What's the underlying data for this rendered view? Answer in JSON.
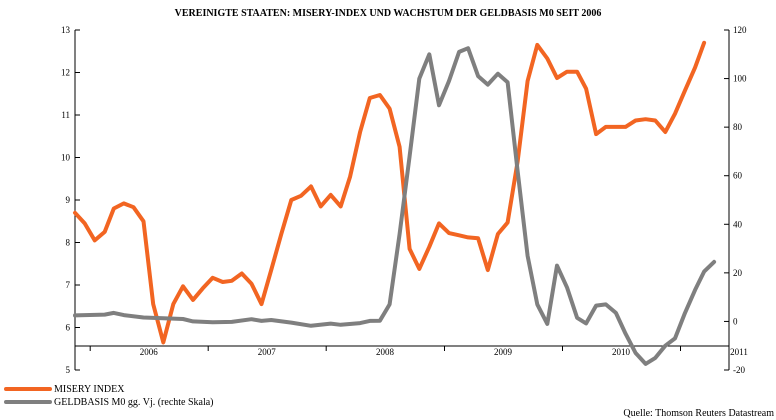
{
  "chart_data": {
    "type": "line",
    "title": "VEREINIGTE STAATEN: MISERY-INDEX UND WACHSTUM DER GELDBASIS M0 SEIT 2006",
    "source": "Quelle: Thomson Reuters Datastream",
    "x_axis": {
      "range": [
        "2005-11-15",
        "2011-05-31"
      ],
      "tick_labels": [
        "2006",
        "2007",
        "2008",
        "2009",
        "2010",
        "2011"
      ]
    },
    "y_left": {
      "range": [
        5,
        13
      ],
      "tick_labels": [
        "5",
        "6",
        "7",
        "8",
        "9",
        "10",
        "11",
        "12",
        "13"
      ]
    },
    "y_right": {
      "range": [
        -20,
        120
      ],
      "tick_labels": [
        "-20",
        "0",
        "20",
        "40",
        "60",
        "80",
        "100",
        "120"
      ]
    },
    "grid": false,
    "legend_position": "bottom-left",
    "series": [
      {
        "name": "MISERY INDEX",
        "axis": "left",
        "color": "#f26522",
        "points": [
          [
            "2005-11",
            8.7
          ],
          [
            "2005-12",
            8.45
          ],
          [
            "2006-01",
            8.05
          ],
          [
            "2006-02",
            8.25
          ],
          [
            "2006-03",
            8.8
          ],
          [
            "2006-04",
            8.92
          ],
          [
            "2006-05",
            8.83
          ],
          [
            "2006-06",
            8.5
          ],
          [
            "2006-07",
            6.55
          ],
          [
            "2006-08",
            5.65
          ],
          [
            "2006-09",
            6.55
          ],
          [
            "2006-10",
            6.97
          ],
          [
            "2006-11",
            6.65
          ],
          [
            "2006-12",
            6.92
          ],
          [
            "2007-01",
            7.17
          ],
          [
            "2007-02",
            7.07
          ],
          [
            "2007-03",
            7.1
          ],
          [
            "2007-04",
            7.27
          ],
          [
            "2007-05",
            7.03
          ],
          [
            "2007-06",
            6.55
          ],
          [
            "2007-07",
            7.35
          ],
          [
            "2007-08",
            8.2
          ],
          [
            "2007-09",
            9.0
          ],
          [
            "2007-10",
            9.1
          ],
          [
            "2007-11",
            9.32
          ],
          [
            "2007-12",
            8.85
          ],
          [
            "2008-01",
            9.12
          ],
          [
            "2008-02",
            8.85
          ],
          [
            "2008-03",
            9.55
          ],
          [
            "2008-04",
            10.6
          ],
          [
            "2008-05",
            11.4
          ],
          [
            "2008-06",
            11.47
          ],
          [
            "2008-07",
            11.15
          ],
          [
            "2008-08",
            10.25
          ],
          [
            "2008-09",
            7.85
          ],
          [
            "2008-10",
            7.38
          ],
          [
            "2008-11",
            7.9
          ],
          [
            "2008-12",
            8.45
          ],
          [
            "2009-01",
            8.22
          ],
          [
            "2009-02",
            8.17
          ],
          [
            "2009-03",
            8.12
          ],
          [
            "2009-04",
            8.1
          ],
          [
            "2009-05",
            7.35
          ],
          [
            "2009-06",
            8.2
          ],
          [
            "2009-07",
            8.47
          ],
          [
            "2009-08",
            9.9
          ],
          [
            "2009-09",
            11.8
          ],
          [
            "2009-10",
            12.65
          ],
          [
            "2009-11",
            12.33
          ],
          [
            "2009-12",
            11.87
          ],
          [
            "2010-01",
            12.02
          ],
          [
            "2010-02",
            12.02
          ],
          [
            "2010-03",
            11.62
          ],
          [
            "2010-04",
            10.55
          ],
          [
            "2010-05",
            10.72
          ],
          [
            "2010-06",
            10.72
          ],
          [
            "2010-07",
            10.72
          ],
          [
            "2010-08",
            10.87
          ],
          [
            "2010-09",
            10.9
          ],
          [
            "2010-10",
            10.87
          ],
          [
            "2010-11",
            10.6
          ],
          [
            "2010-12",
            11.03
          ],
          [
            "2011-01",
            11.58
          ],
          [
            "2011-02",
            12.12
          ],
          [
            "2011-03",
            12.7
          ]
        ]
      },
      {
        "name": "GELDBASIS M0 gg. Vj. (rechte Skala)",
        "axis": "right",
        "color": "#7f7f7f",
        "points": [
          [
            "2005-11",
            2.5
          ],
          [
            "2006-01",
            2.7
          ],
          [
            "2006-02",
            2.8
          ],
          [
            "2006-03",
            3.5
          ],
          [
            "2006-04",
            2.6
          ],
          [
            "2006-06",
            1.6
          ],
          [
            "2006-08",
            1.3
          ],
          [
            "2006-10",
            1.0
          ],
          [
            "2006-11",
            0.0
          ],
          [
            "2007-01",
            -0.3
          ],
          [
            "2007-03",
            -0.2
          ],
          [
            "2007-05",
            0.9
          ],
          [
            "2007-06",
            0.2
          ],
          [
            "2007-07",
            0.6
          ],
          [
            "2007-09",
            -0.5
          ],
          [
            "2007-11",
            -1.8
          ],
          [
            "2008-01",
            -0.9
          ],
          [
            "2008-02",
            -1.4
          ],
          [
            "2008-04",
            -0.7
          ],
          [
            "2008-05",
            0.2
          ],
          [
            "2008-06",
            0.3
          ],
          [
            "2008-07",
            7.0
          ],
          [
            "2008-08",
            36.0
          ],
          [
            "2008-09",
            68.0
          ],
          [
            "2008-10",
            100.0
          ],
          [
            "2008-11",
            110.0
          ],
          [
            "2008-12",
            89.0
          ],
          [
            "2009-01",
            99.0
          ],
          [
            "2009-02",
            111.0
          ],
          [
            "2009-03",
            112.5
          ],
          [
            "2009-04",
            101.0
          ],
          [
            "2009-05",
            97.5
          ],
          [
            "2009-06",
            102.0
          ],
          [
            "2009-07",
            98.5
          ],
          [
            "2009-08",
            62.0
          ],
          [
            "2009-09",
            27.0
          ],
          [
            "2009-10",
            7.0
          ],
          [
            "2009-11",
            -1.0
          ],
          [
            "2009-12",
            23.0
          ],
          [
            "2010-01",
            14.0
          ],
          [
            "2010-02",
            1.5
          ],
          [
            "2010-03",
            -0.8
          ],
          [
            "2010-04",
            6.5
          ],
          [
            "2010-05",
            7.0
          ],
          [
            "2010-06",
            3.5
          ],
          [
            "2010-07",
            -5.0
          ],
          [
            "2010-08",
            -13.0
          ],
          [
            "2010-09",
            -17.5
          ],
          [
            "2010-10",
            -15.0
          ],
          [
            "2010-11",
            -10.0
          ],
          [
            "2010-12",
            -7.0
          ],
          [
            "2011-01",
            3.5
          ],
          [
            "2011-02",
            13.0
          ],
          [
            "2011-03",
            20.5
          ],
          [
            "2011-04",
            24.5
          ]
        ]
      }
    ]
  }
}
